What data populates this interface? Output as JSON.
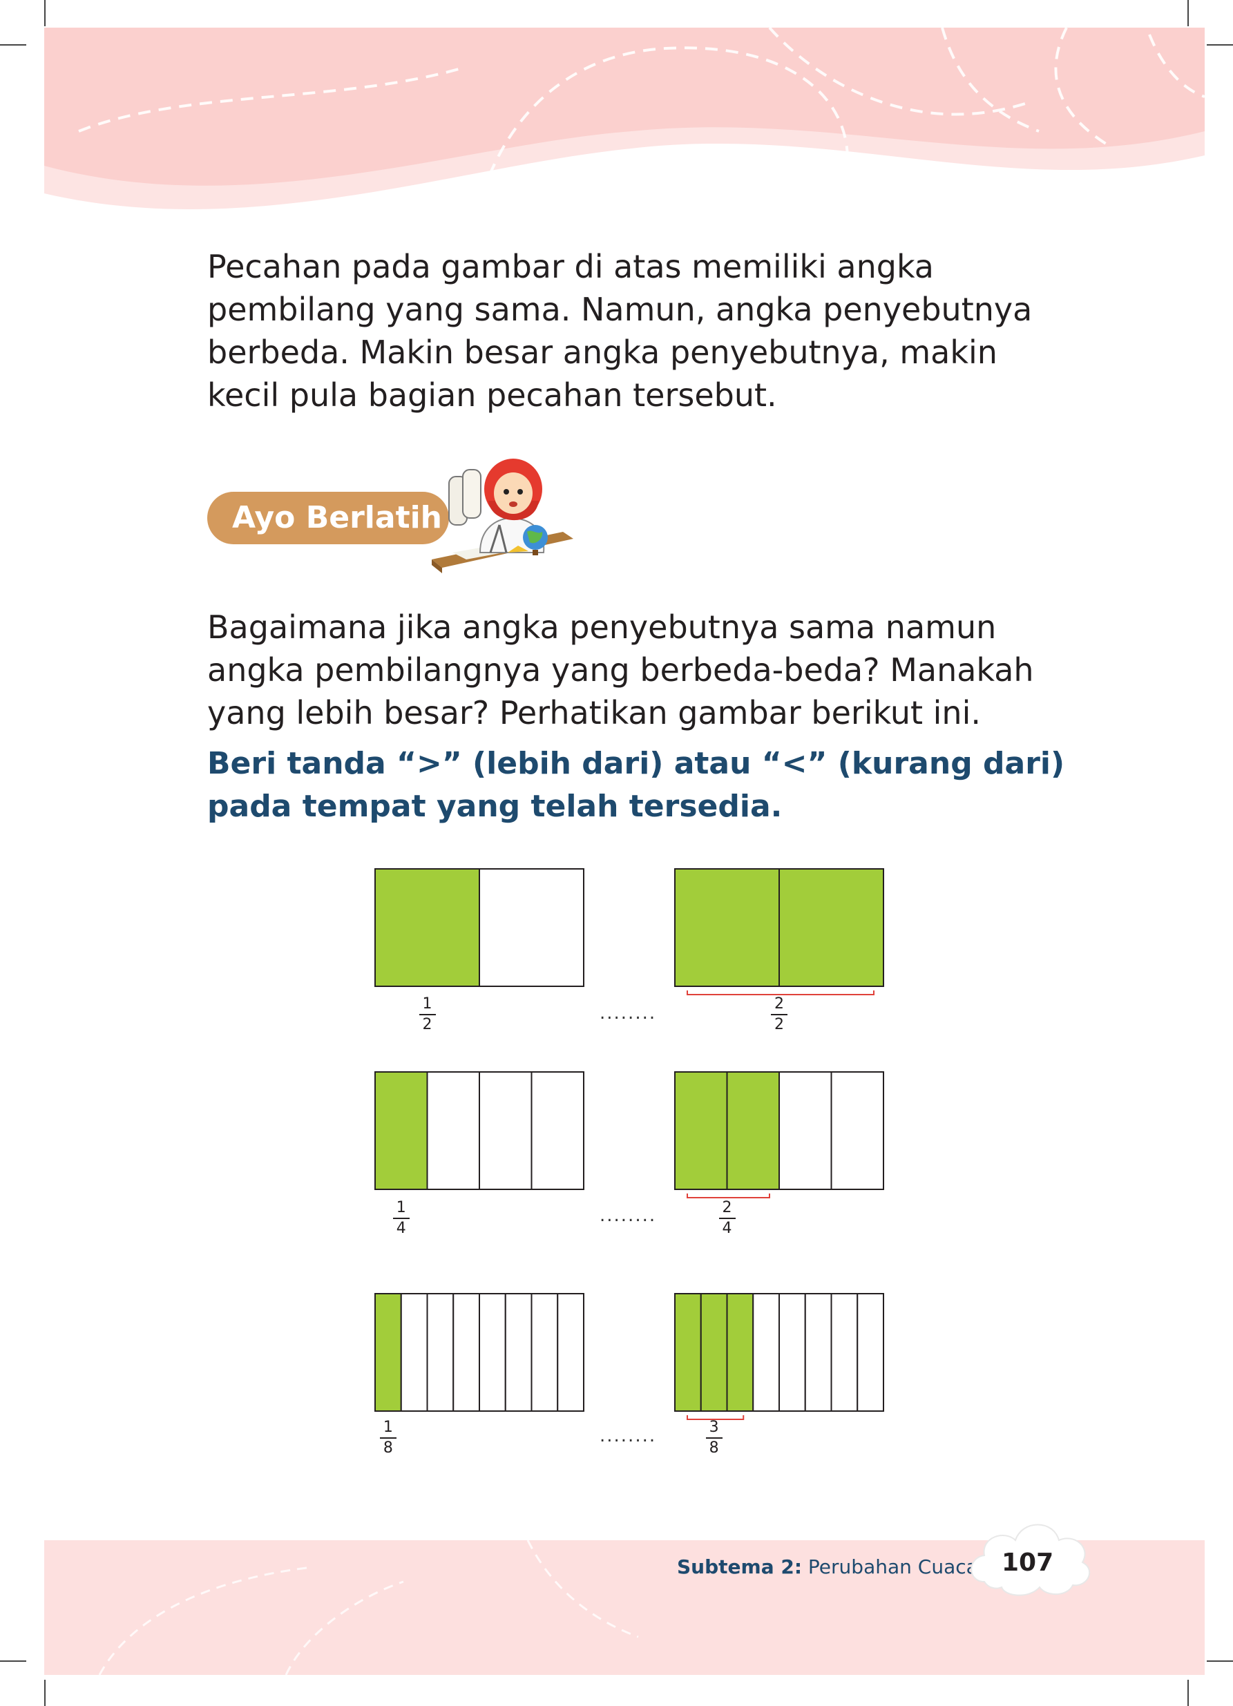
{
  "intro_lines": [
    "Pecahan pada gambar di atas memiliki angka",
    "pembilang yang sama. Namun, angka penyebutnya",
    "berbeda. Makin besar angka penyebutnya, makin",
    "kecil pula bagian pecahan tersebut."
  ],
  "section_tab": "Ayo Berlatih",
  "question_lines": [
    "Bagaimana jika angka penyebutnya sama namun",
    "angka pembilangnya yang berbeda-beda? Manakah",
    "yang lebih besar?  Perhatikan gambar berikut ini."
  ],
  "instruction_lines": [
    "Beri tanda “>” (lebih dari) atau “<” (kurang dari)",
    "pada tempat yang telah tersedia."
  ],
  "colors": {
    "fill": "#a2cd3a",
    "tab": "#d49a5d",
    "heading": "#1e4a6e",
    "band": "#fde0df"
  },
  "exercises": [
    {
      "left": {
        "numerator": 1,
        "denominator": 2,
        "label_num": "1",
        "label_den": "2"
      },
      "blank": "........",
      "right": {
        "numerator": 2,
        "denominator": 2,
        "label_num": "2",
        "label_den": "2"
      }
    },
    {
      "left": {
        "numerator": 1,
        "denominator": 4,
        "label_num": "1",
        "label_den": "4"
      },
      "blank": "........",
      "right": {
        "numerator": 2,
        "denominator": 4,
        "label_num": "2",
        "label_den": "4"
      }
    },
    {
      "left": {
        "numerator": 1,
        "denominator": 8,
        "label_num": "1",
        "label_den": "8"
      },
      "blank": "........",
      "right": {
        "numerator": 3,
        "denominator": 8,
        "label_num": "3",
        "label_den": "8"
      }
    }
  ],
  "footer": {
    "subtheme_label": "Subtema 2:",
    "subtheme_title": "Perubahan Cuaca",
    "page_number": "107"
  }
}
